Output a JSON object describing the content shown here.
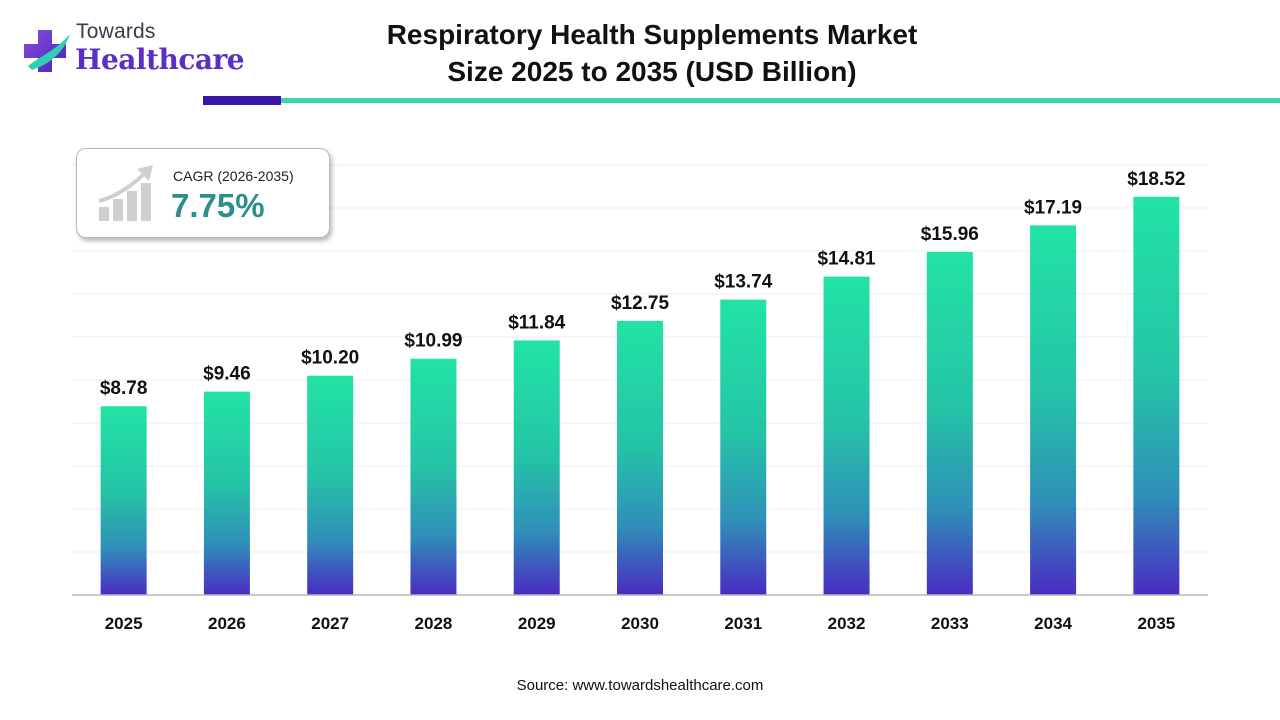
{
  "brand": {
    "top": "Towards",
    "bottom": "Healthcare"
  },
  "title": {
    "line1": "Respiratory Health Supplements Market",
    "line2": "Size 2025 to 2035 (USD Billion)"
  },
  "cagr": {
    "label": "CAGR (2026-2035)",
    "value": "7.75%"
  },
  "source": "Source: www.towardshealthcare.com",
  "colors": {
    "bar_top": "#22e3a5",
    "bar_mid": "#2f8fb8",
    "bar_bottom": "#4a2bc2",
    "accent_purple": "#5b2fc4",
    "accent_teal": "#3cd3b0"
  },
  "chart_data": {
    "type": "bar",
    "categories": [
      "2025",
      "2026",
      "2027",
      "2028",
      "2029",
      "2030",
      "2031",
      "2032",
      "2033",
      "2034",
      "2035"
    ],
    "values": [
      8.78,
      9.46,
      10.2,
      10.99,
      11.84,
      12.75,
      13.74,
      14.81,
      15.96,
      17.19,
      18.52
    ],
    "data_labels": [
      "$8.78",
      "$9.46",
      "$10.20",
      "$10.99",
      "$11.84",
      "$12.75",
      "$13.74",
      "$14.81",
      "$15.96",
      "$17.19",
      "$18.52"
    ],
    "ylim": [
      0,
      20
    ],
    "grid": true,
    "xlabel": "",
    "ylabel": ""
  }
}
